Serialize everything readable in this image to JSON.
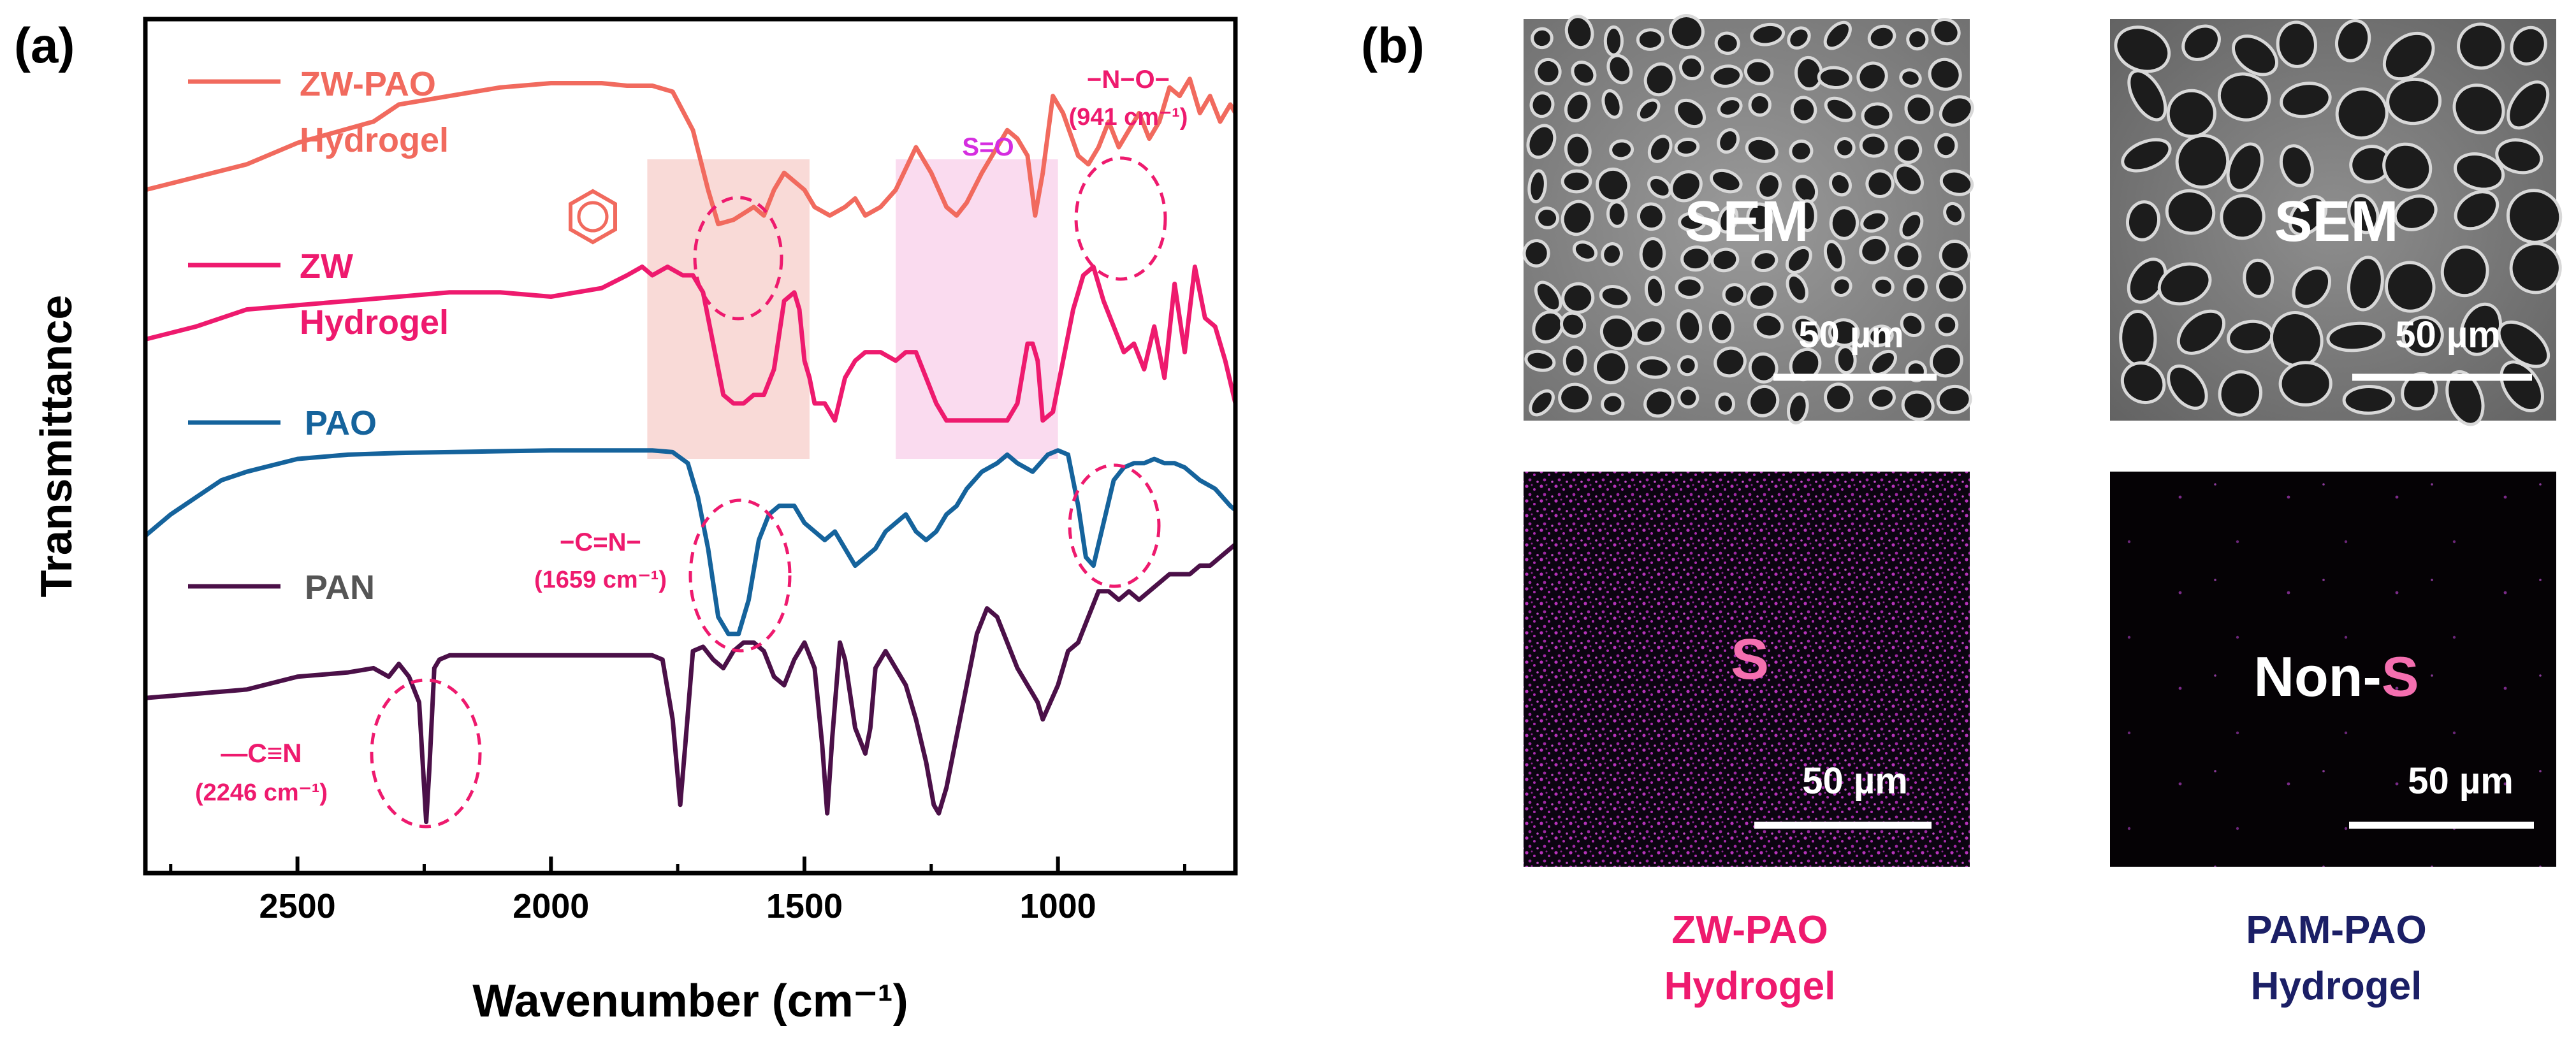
{
  "panel_a": {
    "label": "(a)",
    "xlabel": "Wavenumber (cm⁻¹)",
    "ylabel": "Transmittance"
  },
  "panel_b": {
    "label": "(b)",
    "sem_label": "SEM",
    "scale_label": "50 µm",
    "map_zw_label": "S",
    "map_pam_prefix": "Non-",
    "map_pam_element": "S",
    "caption_zw": [
      "ZW-PAO",
      "Hydrogel"
    ],
    "caption_pam": [
      "PAM-PAO",
      "Hydrogel"
    ],
    "colors": {
      "caption_zw": "#ee1a6e",
      "caption_pam": "#1b1f66",
      "sulfur_dot": "#d43bd8",
      "s_text": "#f46fb0"
    }
  },
  "annotations": {
    "no_group": "−N−O−",
    "no_wavenumber": "(941 cm⁻¹)",
    "so_group": "S=O",
    "cn_double_group": "−C=N−",
    "cn_double_wavenumber": "(1659 cm⁻¹)",
    "cn_triple_group": "—C≡N",
    "cn_triple_wavenumber": "(2246 cm⁻¹)",
    "benzene_icon": "benzene-ring-icon"
  },
  "chart_data": {
    "type": "line",
    "title": "",
    "xlabel": "Wavenumber (cm⁻¹)",
    "ylabel": "Transmittance",
    "xlim": [
      2800,
      650
    ],
    "x_reversed": true,
    "y_ticks_shown": false,
    "ylim": [
      0,
      1
    ],
    "xticks": [
      2500,
      2000,
      1500,
      1000
    ],
    "grid": false,
    "legend": "inline labels beside each curve",
    "shaded_regions": [
      {
        "x_range": [
          1810,
          1490
        ],
        "color": "#f8d3d0"
      },
      {
        "x_range": [
          1320,
          1000
        ],
        "color": "#f9d5ec"
      }
    ],
    "series": [
      {
        "name": "ZW-PAO Hydrogel",
        "color": "#f16a5e",
        "x": [
          2800,
          2600,
          2500,
          2350,
          2300,
          2200,
          2100,
          2000,
          1900,
          1850,
          1800,
          1760,
          1720,
          1690,
          1670,
          1640,
          1600,
          1580,
          1560,
          1540,
          1500,
          1480,
          1450,
          1420,
          1400,
          1380,
          1350,
          1320,
          1280,
          1250,
          1220,
          1200,
          1180,
          1150,
          1120,
          1100,
          1080,
          1060,
          1045,
          1030,
          1010,
          990,
          960,
          940,
          920,
          900,
          880,
          860,
          840,
          820,
          800,
          780,
          760,
          740,
          720,
          700,
          680,
          660,
          650
        ],
        "y": [
          0.8,
          0.83,
          0.855,
          0.88,
          0.9,
          0.91,
          0.92,
          0.925,
          0.925,
          0.922,
          0.922,
          0.915,
          0.87,
          0.8,
          0.76,
          0.765,
          0.78,
          0.77,
          0.8,
          0.82,
          0.8,
          0.78,
          0.77,
          0.78,
          0.79,
          0.77,
          0.78,
          0.8,
          0.85,
          0.82,
          0.78,
          0.77,
          0.785,
          0.82,
          0.85,
          0.87,
          0.86,
          0.84,
          0.77,
          0.82,
          0.91,
          0.89,
          0.84,
          0.83,
          0.85,
          0.88,
          0.85,
          0.87,
          0.89,
          0.86,
          0.88,
          0.92,
          0.91,
          0.93,
          0.89,
          0.91,
          0.88,
          0.9,
          0.89
        ]
      },
      {
        "name": "ZW Hydrogel",
        "color": "#ee1a6e",
        "x": [
          2800,
          2700,
          2600,
          2500,
          2400,
          2300,
          2200,
          2100,
          2000,
          1950,
          1900,
          1850,
          1820,
          1800,
          1770,
          1740,
          1720,
          1700,
          1680,
          1660,
          1640,
          1620,
          1600,
          1580,
          1560,
          1540,
          1520,
          1510,
          1500,
          1490,
          1480,
          1460,
          1440,
          1420,
          1400,
          1380,
          1350,
          1320,
          1300,
          1280,
          1260,
          1240,
          1220,
          1200,
          1180,
          1150,
          1120,
          1100,
          1080,
          1060,
          1050,
          1040,
          1030,
          1010,
          990,
          970,
          950,
          930,
          910,
          890,
          870,
          850,
          830,
          810,
          790,
          770,
          750,
          730,
          710,
          690,
          670,
          650
        ],
        "y": [
          0.625,
          0.64,
          0.66,
          0.665,
          0.67,
          0.675,
          0.68,
          0.68,
          0.675,
          0.68,
          0.685,
          0.7,
          0.71,
          0.7,
          0.71,
          0.7,
          0.7,
          0.68,
          0.62,
          0.56,
          0.55,
          0.55,
          0.56,
          0.56,
          0.59,
          0.67,
          0.68,
          0.66,
          0.6,
          0.58,
          0.55,
          0.55,
          0.53,
          0.58,
          0.6,
          0.61,
          0.61,
          0.6,
          0.61,
          0.61,
          0.58,
          0.55,
          0.53,
          0.53,
          0.53,
          0.53,
          0.53,
          0.53,
          0.55,
          0.62,
          0.62,
          0.6,
          0.53,
          0.54,
          0.6,
          0.66,
          0.7,
          0.71,
          0.67,
          0.64,
          0.61,
          0.62,
          0.59,
          0.64,
          0.58,
          0.69,
          0.61,
          0.71,
          0.65,
          0.64,
          0.6,
          0.55
        ]
      },
      {
        "name": "PAO",
        "color": "#15639c",
        "x": [
          2800,
          2750,
          2700,
          2650,
          2600,
          2500,
          2400,
          2300,
          2200,
          2100,
          2000,
          1900,
          1800,
          1760,
          1730,
          1710,
          1690,
          1670,
          1650,
          1630,
          1610,
          1590,
          1570,
          1550,
          1520,
          1500,
          1480,
          1460,
          1440,
          1420,
          1400,
          1380,
          1360,
          1340,
          1320,
          1300,
          1280,
          1260,
          1240,
          1220,
          1200,
          1180,
          1150,
          1120,
          1100,
          1080,
          1050,
          1020,
          1000,
          980,
          960,
          945,
          930,
          910,
          890,
          870,
          850,
          830,
          810,
          790,
          770,
          750,
          720,
          690,
          660,
          650
        ],
        "y": [
          0.395,
          0.42,
          0.44,
          0.46,
          0.47,
          0.485,
          0.49,
          0.492,
          0.493,
          0.494,
          0.495,
          0.495,
          0.495,
          0.493,
          0.48,
          0.44,
          0.38,
          0.3,
          0.28,
          0.28,
          0.32,
          0.39,
          0.42,
          0.43,
          0.43,
          0.41,
          0.4,
          0.39,
          0.4,
          0.38,
          0.36,
          0.37,
          0.38,
          0.4,
          0.41,
          0.42,
          0.4,
          0.39,
          0.4,
          0.42,
          0.43,
          0.45,
          0.47,
          0.48,
          0.49,
          0.48,
          0.47,
          0.49,
          0.495,
          0.49,
          0.43,
          0.37,
          0.36,
          0.41,
          0.46,
          0.475,
          0.48,
          0.48,
          0.485,
          0.48,
          0.48,
          0.475,
          0.46,
          0.45,
          0.43,
          0.425
        ]
      },
      {
        "name": "PAN",
        "color": "#4b1048",
        "x": [
          2800,
          2700,
          2600,
          2500,
          2400,
          2350,
          2320,
          2300,
          2280,
          2260,
          2250,
          2246,
          2240,
          2230,
          2220,
          2200,
          2100,
          2000,
          1900,
          1800,
          1780,
          1760,
          1745,
          1735,
          1720,
          1700,
          1680,
          1660,
          1640,
          1620,
          1600,
          1580,
          1560,
          1540,
          1520,
          1500,
          1480,
          1465,
          1455,
          1445,
          1430,
          1420,
          1400,
          1380,
          1370,
          1360,
          1340,
          1320,
          1300,
          1280,
          1260,
          1245,
          1235,
          1220,
          1200,
          1180,
          1160,
          1140,
          1120,
          1100,
          1080,
          1060,
          1050,
          1040,
          1030,
          1000,
          980,
          960,
          940,
          920,
          900,
          880,
          860,
          840,
          820,
          800,
          780,
          760,
          740,
          720,
          700,
          680,
          660,
          650
        ],
        "y": [
          0.205,
          0.21,
          0.215,
          0.23,
          0.235,
          0.24,
          0.23,
          0.245,
          0.23,
          0.2,
          0.1,
          0.06,
          0.12,
          0.24,
          0.25,
          0.255,
          0.255,
          0.255,
          0.255,
          0.255,
          0.25,
          0.18,
          0.08,
          0.15,
          0.26,
          0.265,
          0.25,
          0.24,
          0.26,
          0.27,
          0.27,
          0.26,
          0.23,
          0.22,
          0.25,
          0.27,
          0.24,
          0.15,
          0.07,
          0.16,
          0.27,
          0.25,
          0.17,
          0.14,
          0.17,
          0.24,
          0.26,
          0.24,
          0.22,
          0.18,
          0.13,
          0.08,
          0.07,
          0.1,
          0.16,
          0.22,
          0.28,
          0.31,
          0.3,
          0.27,
          0.24,
          0.22,
          0.21,
          0.2,
          0.18,
          0.22,
          0.26,
          0.27,
          0.3,
          0.33,
          0.33,
          0.32,
          0.33,
          0.32,
          0.33,
          0.34,
          0.35,
          0.35,
          0.35,
          0.36,
          0.36,
          0.37,
          0.38,
          0.385
        ]
      }
    ]
  }
}
